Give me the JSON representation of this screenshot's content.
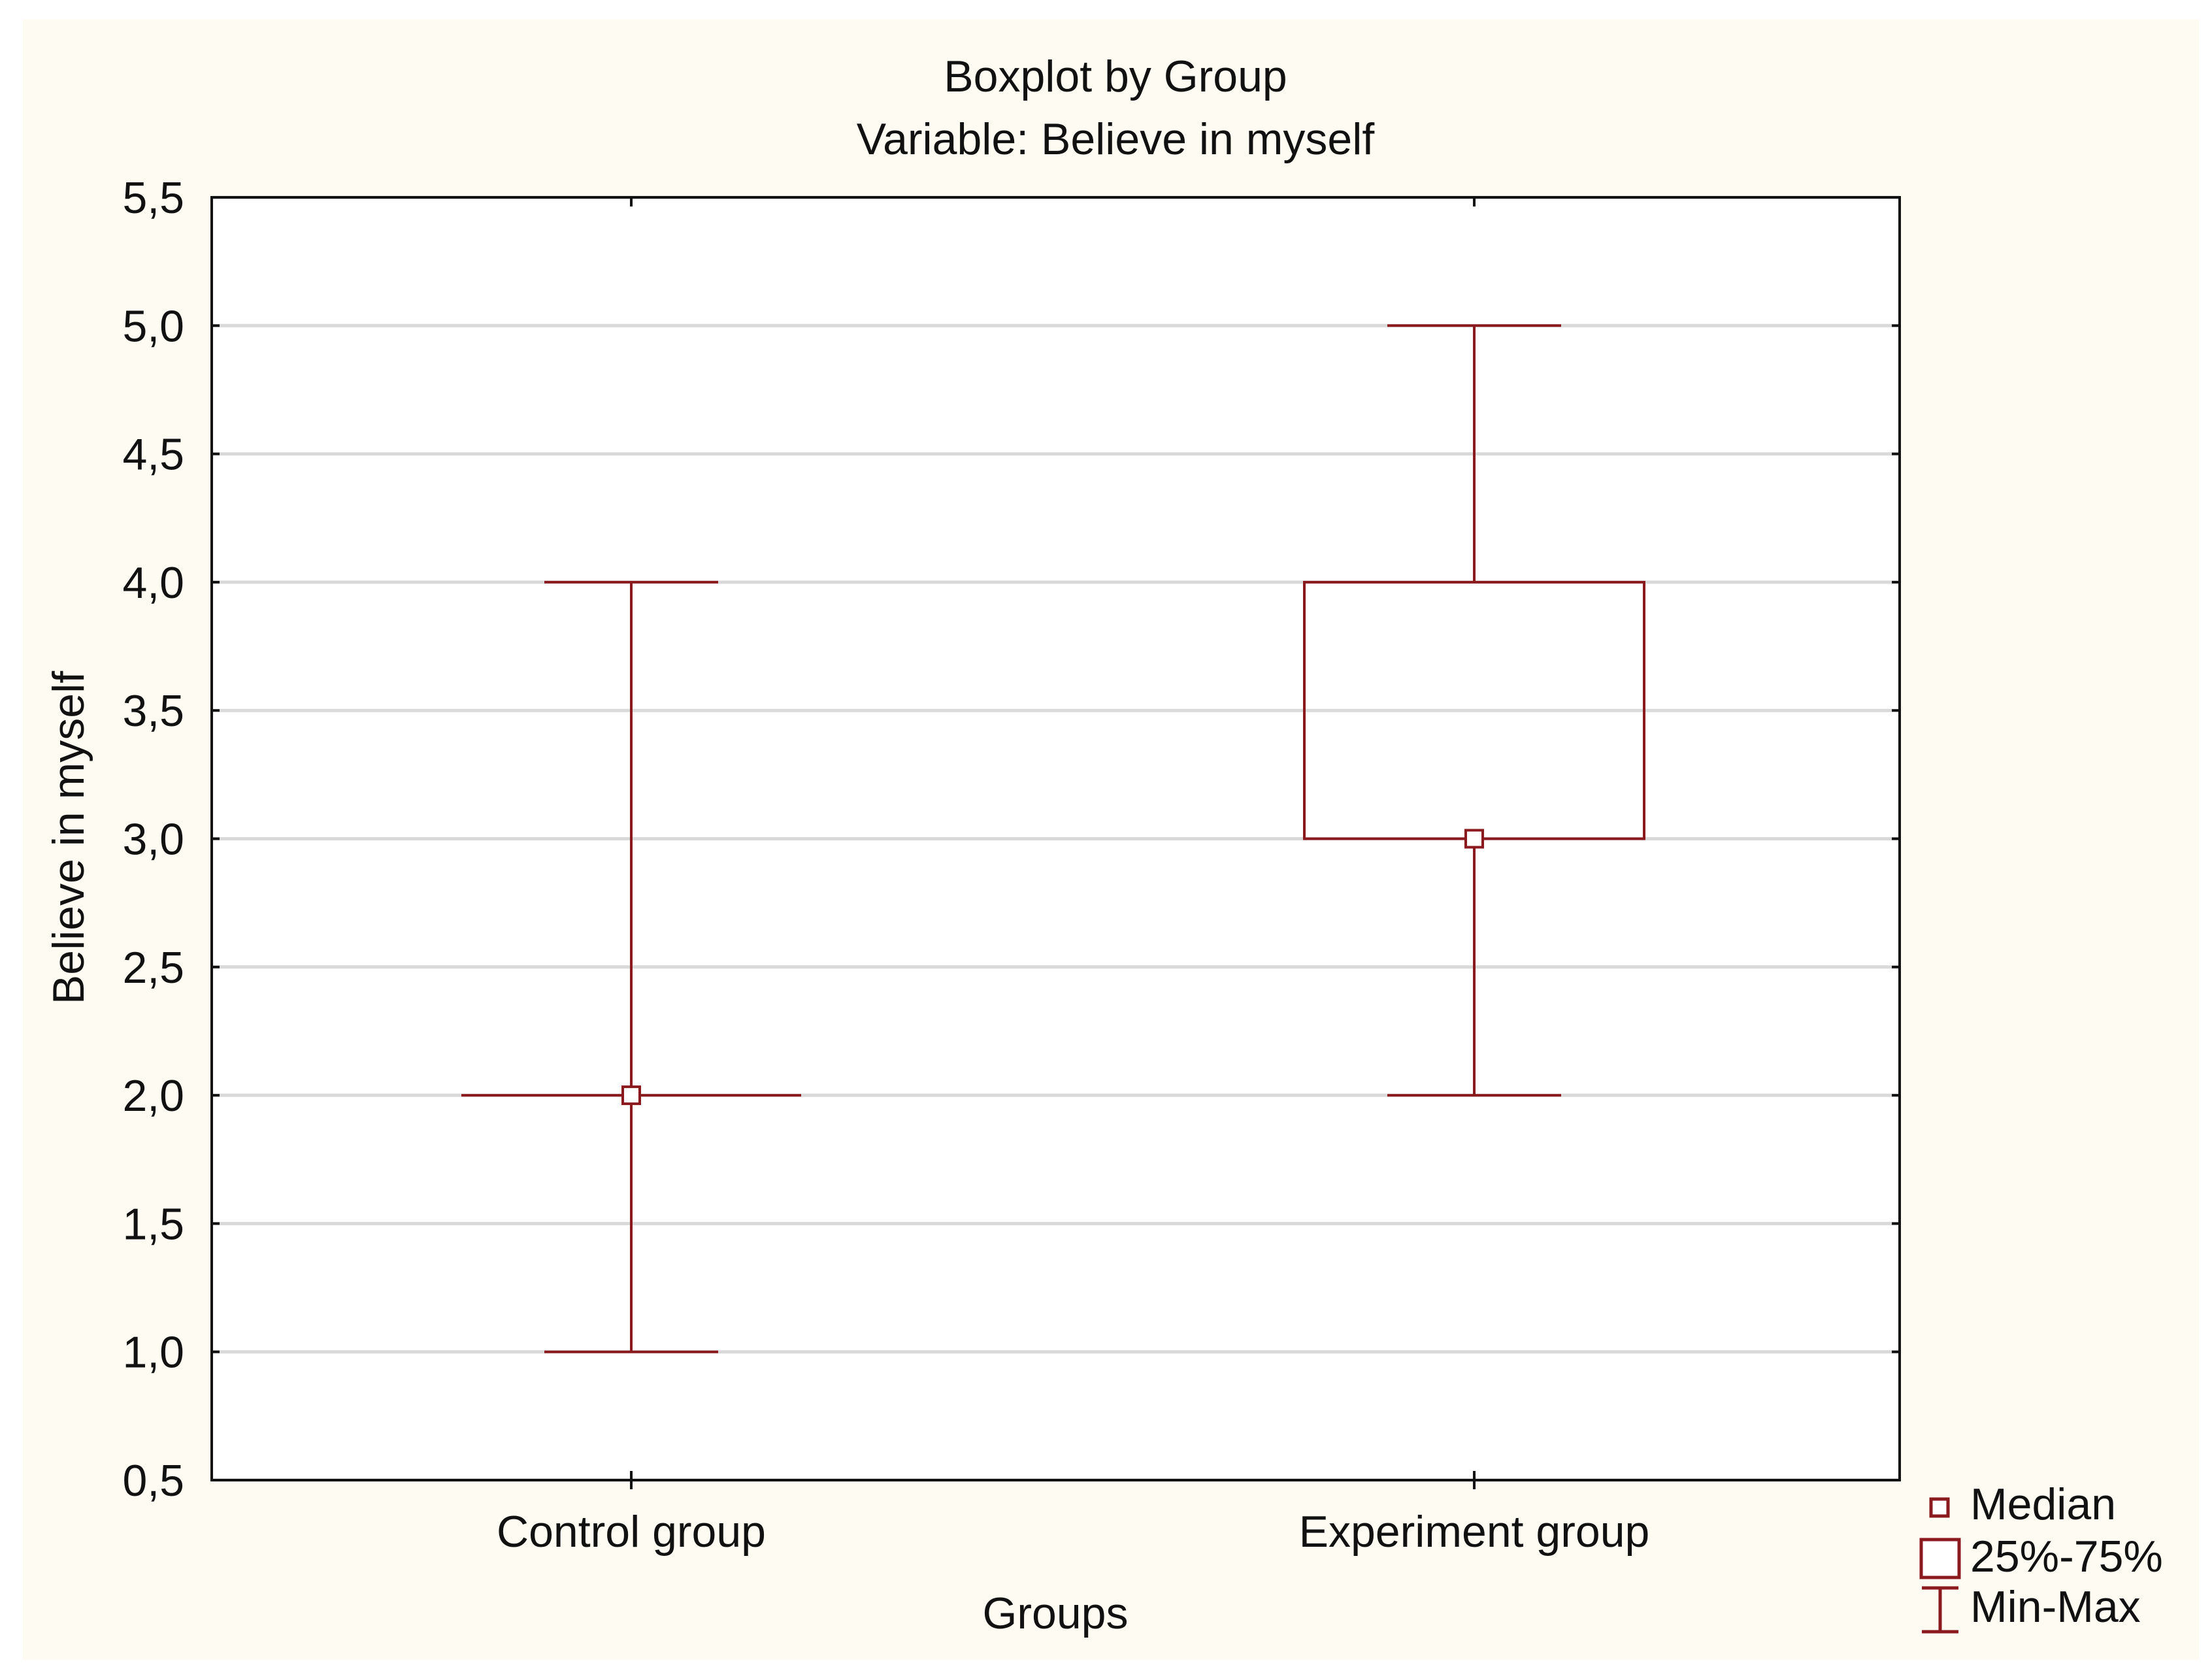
{
  "chart_data": {
    "type": "boxplot",
    "title": "Boxplot by Group",
    "subtitle": "Variable: Believe in myself",
    "xlabel": "Groups",
    "ylabel": "Believe in myself",
    "ylim": [
      0.5,
      5.5
    ],
    "yticks": [
      0.5,
      1.0,
      1.5,
      2.0,
      2.5,
      3.0,
      3.5,
      4.0,
      4.5,
      5.0,
      5.5
    ],
    "ytick_labels": [
      "0,5",
      "1,0",
      "1,5",
      "2,0",
      "2,5",
      "3,0",
      "3,5",
      "4,0",
      "4,5",
      "5,0",
      "5,5"
    ],
    "grid": true,
    "categories": [
      "Control group",
      "Experiment group"
    ],
    "series": [
      {
        "name": "Control group",
        "median": 2.0,
        "q1": 2.0,
        "q3": 2.0,
        "min": 1.0,
        "max": 4.0
      },
      {
        "name": "Experiment group",
        "median": 3.0,
        "q1": 3.0,
        "q3": 4.0,
        "min": 2.0,
        "max": 5.0
      }
    ],
    "legend": {
      "position": "bottom-right",
      "entries": [
        {
          "marker": "median-square",
          "label": "Median"
        },
        {
          "marker": "box",
          "label": "25%-75%"
        },
        {
          "marker": "whisker",
          "label": "Min-Max"
        }
      ]
    },
    "colors": {
      "series": "#8b1a1f",
      "background": "#fdfbf2",
      "plot_background": "#ffffff",
      "grid": "#d9d9d9",
      "axis": "#111111"
    }
  }
}
